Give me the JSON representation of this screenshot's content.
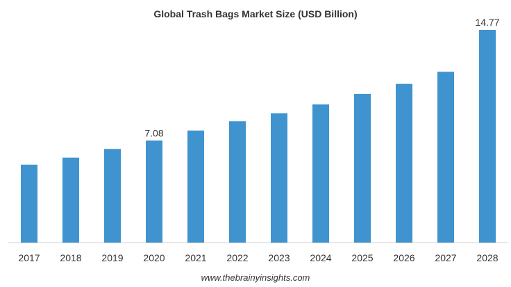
{
  "chart_data": {
    "type": "bar",
    "title": "Global Trash Bags Market Size (USD Billion)",
    "xlabel": "",
    "ylabel": "",
    "categories": [
      "2017",
      "2018",
      "2019",
      "2020",
      "2021",
      "2022",
      "2023",
      "2024",
      "2025",
      "2026",
      "2027",
      "2028"
    ],
    "values": [
      5.41,
      5.9,
      6.5,
      7.08,
      7.78,
      8.43,
      8.97,
      9.59,
      10.33,
      11.02,
      11.86,
      14.77
    ],
    "data_labels": [
      {
        "index": 3,
        "text": "7.08"
      },
      {
        "index": 11,
        "text": "14.77"
      }
    ],
    "ylim": [
      0,
      14.77
    ],
    "grid": false,
    "legend": "none",
    "bar_color": "#3f93cf",
    "axis_color": "#cccccc"
  },
  "source": "www.thebrainyinsights.com"
}
